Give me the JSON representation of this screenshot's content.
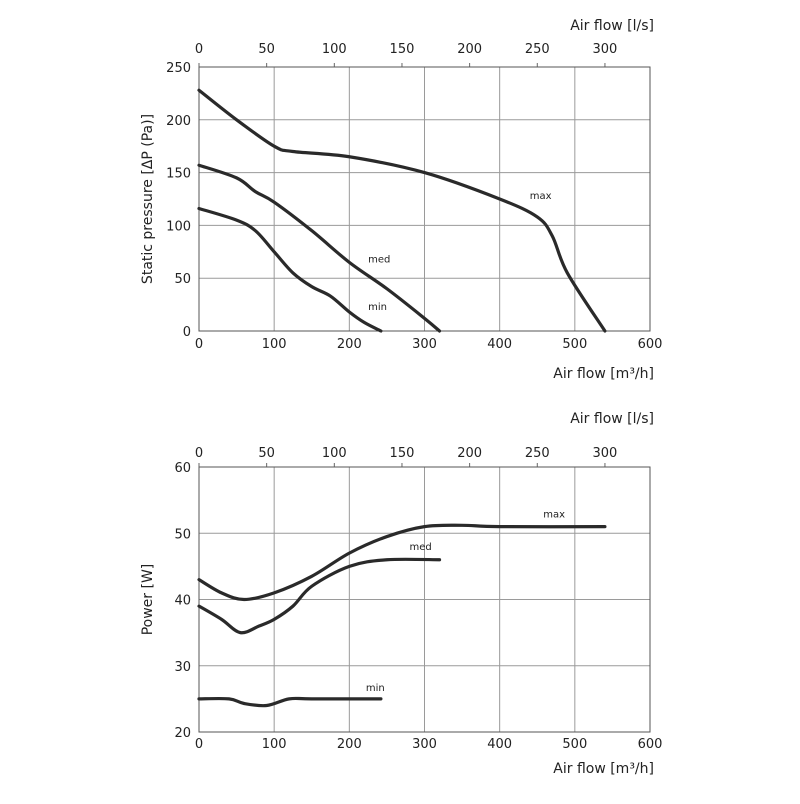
{
  "chart_data": [
    {
      "type": "line",
      "title": "",
      "xlabel": "Air flow [m³/h]",
      "x2label": "Air flow [l/s]",
      "ylabel": "Static pressure [ΔP (Pa)]",
      "xlim": [
        0,
        600
      ],
      "x2lim": [
        0,
        333.3
      ],
      "ylim": [
        0,
        250
      ],
      "xticks": [
        0,
        100,
        200,
        300,
        400,
        500,
        600
      ],
      "x2ticks": [
        0,
        50,
        100,
        150,
        200,
        250,
        300
      ],
      "yticks": [
        0,
        50,
        100,
        150,
        200,
        250
      ],
      "grid": true,
      "line_color": "#2a2a2a",
      "series": [
        {
          "name": "max",
          "label_at": [
            440,
            125
          ],
          "x": [
            0,
            50,
            100,
            125,
            200,
            300,
            400,
            450,
            470,
            490,
            540
          ],
          "y": [
            228,
            200,
            175,
            170,
            165,
            150,
            125,
            108,
            90,
            55,
            0
          ]
        },
        {
          "name": "med",
          "label_at": [
            225,
            65
          ],
          "x": [
            0,
            50,
            75,
            100,
            150,
            200,
            250,
            300,
            320
          ],
          "y": [
            157,
            145,
            132,
            122,
            95,
            65,
            40,
            12,
            0
          ]
        },
        {
          "name": "min",
          "label_at": [
            225,
            20
          ],
          "x": [
            0,
            50,
            75,
            100,
            125,
            150,
            175,
            200,
            220,
            242
          ],
          "y": [
            116,
            105,
            95,
            75,
            55,
            42,
            33,
            18,
            8,
            0
          ]
        }
      ]
    },
    {
      "type": "line",
      "title": "",
      "xlabel": "Air flow [m³/h]",
      "x2label": "Air flow [l/s]",
      "ylabel": "Power [W]",
      "xlim": [
        0,
        600
      ],
      "x2lim": [
        0,
        333.3
      ],
      "ylim": [
        20,
        60
      ],
      "xticks": [
        0,
        100,
        200,
        300,
        400,
        500,
        600
      ],
      "x2ticks": [
        0,
        50,
        100,
        150,
        200,
        250,
        300
      ],
      "yticks": [
        20,
        30,
        40,
        50,
        60
      ],
      "grid": true,
      "line_color": "#2a2a2a",
      "series": [
        {
          "name": "max",
          "label_at": [
            458,
            52.4
          ],
          "x": [
            0,
            30,
            60,
            100,
            150,
            200,
            250,
            300,
            350,
            400,
            540
          ],
          "y": [
            43,
            41,
            40,
            41,
            43.5,
            47,
            49.5,
            51,
            51.2,
            51,
            51
          ]
        },
        {
          "name": "med",
          "label_at": [
            280,
            47.5
          ],
          "x": [
            0,
            30,
            55,
            80,
            100,
            125,
            150,
            200,
            250,
            320
          ],
          "y": [
            39,
            37,
            35,
            36,
            37,
            39,
            42,
            45,
            46,
            46
          ]
        },
        {
          "name": "min",
          "label_at": [
            222,
            26.2
          ],
          "x": [
            0,
            40,
            60,
            90,
            120,
            150,
            242
          ],
          "y": [
            25,
            25,
            24.3,
            24,
            25,
            25,
            25
          ]
        }
      ]
    }
  ]
}
